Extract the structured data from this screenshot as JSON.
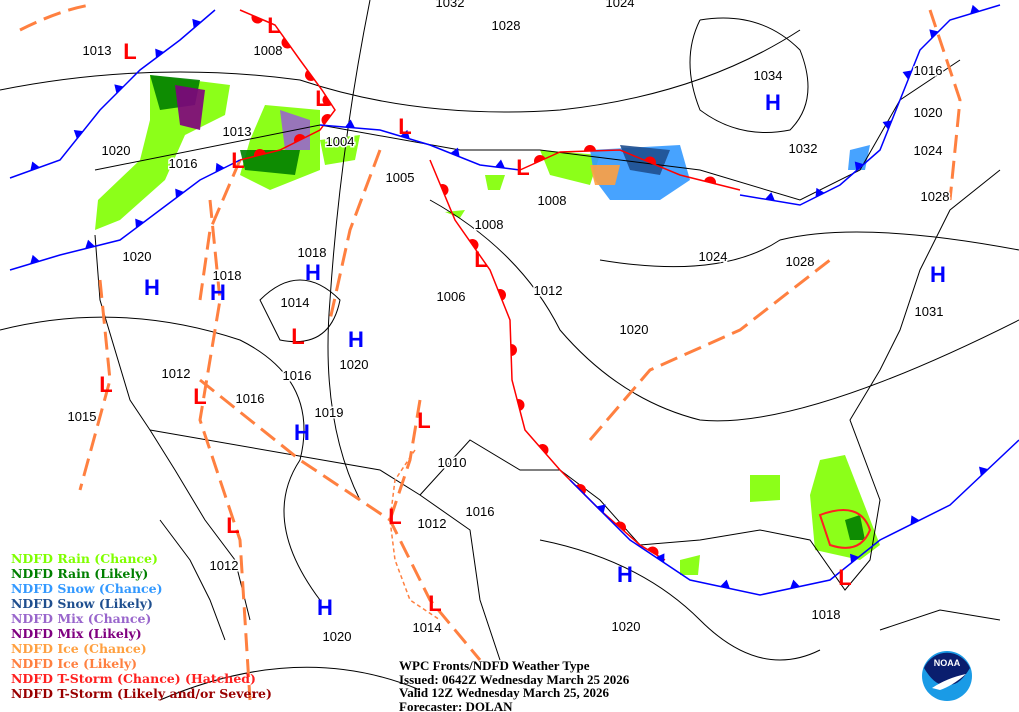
{
  "caption": {
    "title": "WPC Fronts/NDFD Weather Type",
    "issued": "Issued: 0642Z Wednesday March 25 2026",
    "valid": "Valid 12Z Wednesday March 25, 2026",
    "forecaster": "Forecaster: DOLAN"
  },
  "logo_text": "NOAA",
  "legend": [
    {
      "label": "NDFD Rain (Chance)",
      "color": "#80ff00"
    },
    {
      "label": "NDFD Rain (Likely)",
      "color": "#008000"
    },
    {
      "label": "NDFD Snow (Chance)",
      "color": "#3399ff"
    },
    {
      "label": "NDFD Snow (Likely)",
      "color": "#1f4f8f"
    },
    {
      "label": "NDFD Mix (Chance)",
      "color": "#9966cc"
    },
    {
      "label": "NDFD Mix (Likely)",
      "color": "#800080"
    },
    {
      "label": "NDFD Ice (Chance)",
      "color": "#ffa040"
    },
    {
      "label": "NDFD Ice (Likely)",
      "color": "#ff8040"
    },
    {
      "label": "NDFD T-Storm (Chance) (Hatched)",
      "color": "#ff2020"
    },
    {
      "label": "NDFD T-Storm (Likely and/or Severe)",
      "color": "#990000"
    }
  ],
  "isobar_labels": [
    "1013",
    "1008",
    "1028",
    "1034",
    "1016",
    "1020",
    "1024",
    "1028",
    "1032",
    "1020",
    "1013",
    "1016",
    "1004",
    "1005",
    "1008",
    "1008",
    "1018",
    "1020",
    "1018",
    "1014",
    "1024",
    "1028",
    "1006",
    "1012",
    "1020",
    "1031",
    "1020",
    "1016",
    "1012",
    "1016",
    "1019",
    "1015",
    "1010",
    "1016",
    "1012",
    "1012",
    "1014",
    "1020",
    "1020",
    "1018",
    "1032",
    "1024"
  ],
  "high_label": "H",
  "low_label": "L",
  "colors": {
    "high": "#0000ff",
    "low": "#ff0000",
    "cold_front": "#0000ff",
    "warm_front": "#ff0000",
    "trough": "#ff8040"
  }
}
